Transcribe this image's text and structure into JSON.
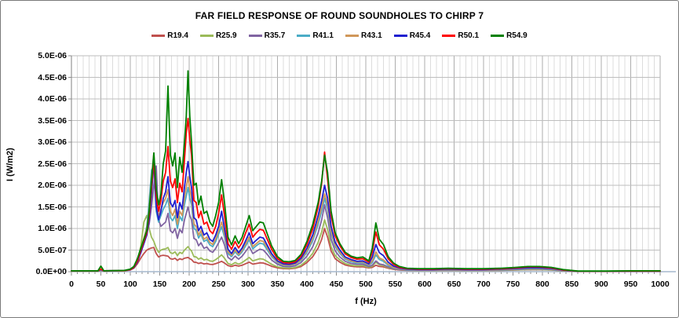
{
  "figure": {
    "title": "FAR FIELD RESPONSE OF ROUND SOUNDHOLES TO CHIRP 7"
  },
  "axes": {
    "x": {
      "label": "f (Hz)",
      "min": 0,
      "max": 1000,
      "major_step": 50,
      "minor_step": 10,
      "ticks": [
        "0",
        "50",
        "100",
        "150",
        "200",
        "250",
        "300",
        "350",
        "400",
        "450",
        "500",
        "550",
        "600",
        "650",
        "700",
        "750",
        "800",
        "850",
        "900",
        "950",
        "1000"
      ]
    },
    "y": {
      "label": "I (W/m2)",
      "min": "0.0E+00",
      "max": "5.0E-06",
      "ticks": [
        "5.0E-06",
        "4.5E-06",
        "4.0E-06",
        "3.5E-06",
        "3.0E-06",
        "2.5E-06",
        "2.0E-06",
        "1.5E-06",
        "1.0E-06",
        "5.0E-07",
        "0.0E+00"
      ]
    }
  },
  "chart_data": {
    "type": "line",
    "title": "FAR FIELD RESPONSE OF ROUND SOUNDHOLES TO CHIRP 7",
    "xlabel": "f (Hz)",
    "ylabel": "I (W/m2)",
    "xlim": [
      0,
      1000
    ],
    "ylim": [
      0,
      5e-06
    ],
    "legend_position": "top",
    "grid": {
      "x_minor_hz": 10,
      "x_major_hz": 50,
      "y_step": 5e-07
    },
    "value_unit": 1e-07,
    "x": [
      0,
      45,
      50,
      55,
      90,
      100,
      106,
      112,
      118,
      123,
      128,
      132,
      136,
      140,
      144,
      148,
      152,
      156,
      160,
      164,
      168,
      172,
      176,
      180,
      184,
      188,
      192,
      195,
      198,
      201,
      204,
      208,
      212,
      216,
      220,
      225,
      230,
      235,
      240,
      245,
      250,
      255,
      260,
      266,
      272,
      278,
      284,
      290,
      296,
      302,
      308,
      314,
      320,
      326,
      332,
      340,
      350,
      360,
      370,
      380,
      390,
      400,
      410,
      419,
      425,
      430,
      435,
      441,
      448,
      456,
      465,
      475,
      485,
      495,
      505,
      511,
      517,
      523,
      530,
      538,
      547,
      557,
      570,
      590,
      615,
      640,
      670,
      700,
      730,
      755,
      775,
      795,
      815,
      835,
      850,
      860,
      880,
      910,
      950,
      1000
    ],
    "series": [
      {
        "name": "R19.4",
        "color": "#C0504D",
        "values": [
          0.15,
          0.15,
          0.25,
          0.15,
          0.2,
          0.4,
          0.8,
          1.8,
          3.2,
          4.2,
          5.0,
          5.3,
          5.5,
          5.6,
          4.2,
          3.4,
          3.7,
          3.8,
          3.7,
          3.6,
          3.0,
          2.9,
          3.1,
          2.6,
          3.0,
          2.8,
          3.1,
          3.2,
          3.3,
          3.0,
          2.8,
          2.2,
          2.15,
          1.9,
          2.05,
          1.8,
          1.9,
          1.7,
          1.65,
          1.85,
          2.1,
          2.4,
          2.0,
          1.4,
          1.2,
          1.5,
          1.3,
          1.5,
          1.85,
          2.2,
          1.75,
          1.9,
          2.05,
          2.0,
          1.7,
          1.25,
          0.9,
          0.7,
          0.68,
          0.8,
          1.2,
          2.1,
          3.5,
          5.5,
          7.5,
          10.0,
          8.0,
          4.8,
          3.0,
          2.2,
          1.55,
          1.25,
          1.1,
          1.15,
          0.85,
          1.0,
          1.5,
          1.2,
          1.1,
          0.8,
          0.55,
          0.4,
          0.3,
          0.28,
          0.28,
          0.3,
          0.28,
          0.28,
          0.3,
          0.38,
          0.45,
          0.45,
          0.38,
          0.18,
          0.12,
          0.06,
          0.06,
          0.06,
          0.06,
          0.06
        ]
      },
      {
        "name": "R25.9",
        "color": "#9BBB59",
        "values": [
          0.15,
          0.15,
          0.3,
          0.15,
          0.2,
          0.45,
          0.9,
          2.2,
          6.0,
          11.5,
          13.0,
          10.0,
          8.0,
          7.0,
          5.5,
          4.5,
          5.0,
          5.2,
          5.3,
          5.6,
          4.4,
          4.2,
          4.6,
          3.7,
          4.5,
          4.2,
          5.0,
          5.4,
          5.8,
          5.2,
          4.8,
          3.5,
          3.4,
          2.9,
          3.2,
          2.7,
          2.85,
          2.5,
          2.4,
          2.8,
          3.3,
          3.9,
          3.1,
          1.9,
          1.6,
          2.1,
          1.75,
          2.1,
          2.7,
          3.3,
          2.5,
          2.75,
          3.0,
          2.9,
          2.4,
          1.7,
          1.1,
          0.85,
          0.8,
          0.95,
          1.5,
          2.6,
          4.3,
          6.8,
          9.2,
          12.0,
          9.8,
          5.8,
          3.7,
          2.7,
          1.9,
          1.5,
          1.35,
          1.4,
          1.0,
          1.3,
          2.2,
          1.6,
          1.4,
          0.95,
          0.65,
          0.45,
          0.35,
          0.3,
          0.3,
          0.33,
          0.3,
          0.3,
          0.33,
          0.42,
          0.5,
          0.5,
          0.42,
          0.2,
          0.13,
          0.07,
          0.07,
          0.07,
          0.07,
          0.07
        ]
      },
      {
        "name": "R35.7",
        "color": "#8064A2",
        "values": [
          0.2,
          0.2,
          0.35,
          0.2,
          0.25,
          0.55,
          1.1,
          2.6,
          5.0,
          7.0,
          9.0,
          11.0,
          15.0,
          20.0,
          24.5,
          12.0,
          10.5,
          11.0,
          11.5,
          13.5,
          9.5,
          9.0,
          10.0,
          7.7,
          9.8,
          9.0,
          12.0,
          13.5,
          15.0,
          13.0,
          12.0,
          7.7,
          7.4,
          6.0,
          6.7,
          5.4,
          5.7,
          4.8,
          4.5,
          5.4,
          6.7,
          8.0,
          6.2,
          3.3,
          2.7,
          3.6,
          2.9,
          3.6,
          4.7,
          5.8,
          4.2,
          4.7,
          5.2,
          5.0,
          4.1,
          2.7,
          1.7,
          1.2,
          1.15,
          1.35,
          2.1,
          3.6,
          5.8,
          9.0,
          12.0,
          15.5,
          12.5,
          7.5,
          4.8,
          3.4,
          2.4,
          1.9,
          1.7,
          1.75,
          1.2,
          1.5,
          2.5,
          1.8,
          1.6,
          1.1,
          0.7,
          0.5,
          0.4,
          0.35,
          0.35,
          0.4,
          0.35,
          0.35,
          0.4,
          0.5,
          0.6,
          0.6,
          0.5,
          0.25,
          0.15,
          0.08,
          0.08,
          0.08,
          0.08,
          0.08
        ]
      },
      {
        "name": "R41.1",
        "color": "#4BACC6",
        "values": [
          0.2,
          0.2,
          0.4,
          0.2,
          0.25,
          0.5,
          1.0,
          2.4,
          5.0,
          7.5,
          10.5,
          16.0,
          23.5,
          24.5,
          14.0,
          11.5,
          13.0,
          14.5,
          15.5,
          17.0,
          12.5,
          11.8,
          13.0,
          10.0,
          12.8,
          11.8,
          15.5,
          17.5,
          19.5,
          17.0,
          15.5,
          10.0,
          9.6,
          7.8,
          8.7,
          7.0,
          7.4,
          6.2,
          5.8,
          7.0,
          8.7,
          10.4,
          8.0,
          4.2,
          3.5,
          4.6,
          3.7,
          4.6,
          6.0,
          7.4,
          5.3,
          6.0,
          6.6,
          6.4,
          5.2,
          3.5,
          2.1,
          1.5,
          1.45,
          1.7,
          2.6,
          4.5,
          7.2,
          11.0,
          14.0,
          17.0,
          14.5,
          9.0,
          5.8,
          4.2,
          2.9,
          2.3,
          2.0,
          2.1,
          1.5,
          2.1,
          3.9,
          2.8,
          2.4,
          1.5,
          0.9,
          0.65,
          0.5,
          0.4,
          0.4,
          0.45,
          0.4,
          0.4,
          0.45,
          0.6,
          0.7,
          0.7,
          0.6,
          0.28,
          0.18,
          0.1,
          0.1,
          0.1,
          0.1,
          0.1
        ]
      },
      {
        "name": "R43.1",
        "color": "#D0975A",
        "values": [
          0.2,
          0.2,
          0.45,
          0.2,
          0.25,
          0.5,
          1.0,
          2.5,
          5.2,
          7.8,
          10.0,
          14.5,
          21.5,
          27.5,
          16.0,
          12.5,
          14.5,
          16.0,
          17.0,
          19.0,
          14.0,
          13.0,
          14.5,
          11.0,
          14.0,
          13.0,
          17.0,
          19.5,
          22.0,
          19.0,
          17.0,
          11.0,
          10.5,
          8.5,
          9.5,
          7.5,
          8.0,
          6.8,
          6.3,
          7.6,
          9.5,
          11.5,
          8.8,
          4.6,
          3.8,
          5.0,
          4.0,
          5.0,
          6.5,
          8.0,
          5.8,
          6.5,
          7.2,
          7.0,
          5.7,
          3.8,
          2.3,
          1.6,
          1.55,
          1.8,
          2.8,
          4.9,
          7.8,
          11.8,
          15.0,
          18.0,
          15.5,
          9.5,
          6.2,
          4.5,
          3.1,
          2.5,
          2.2,
          2.3,
          1.6,
          2.5,
          4.6,
          3.2,
          2.7,
          1.7,
          1.0,
          0.7,
          0.55,
          0.45,
          0.45,
          0.5,
          0.45,
          0.45,
          0.5,
          0.65,
          0.8,
          0.8,
          0.65,
          0.3,
          0.2,
          0.1,
          0.1,
          0.1,
          0.1,
          0.1
        ]
      },
      {
        "name": "R45.4",
        "color": "#1F1FD0",
        "values": [
          0.2,
          0.2,
          0.5,
          0.2,
          0.25,
          0.45,
          0.9,
          2.2,
          4.5,
          6.5,
          8.5,
          12.0,
          18.0,
          25.5,
          15.0,
          12.0,
          14.0,
          17.0,
          18.5,
          22.0,
          16.0,
          15.0,
          16.5,
          12.5,
          16.0,
          14.5,
          19.5,
          23.0,
          25.5,
          22.0,
          19.5,
          12.5,
          12.0,
          9.5,
          10.5,
          8.5,
          9.0,
          7.5,
          7.0,
          8.5,
          10.5,
          14.0,
          10.0,
          5.2,
          4.2,
          5.6,
          4.4,
          5.5,
          7.2,
          9.0,
          6.5,
          7.3,
          8.0,
          7.8,
          6.3,
          4.2,
          2.5,
          1.8,
          1.7,
          2.0,
          3.1,
          5.4,
          8.6,
          13.0,
          16.5,
          20.0,
          17.0,
          10.5,
          6.8,
          5.0,
          3.4,
          2.8,
          2.4,
          2.5,
          1.8,
          3.4,
          6.3,
          4.4,
          3.7,
          2.2,
          1.3,
          0.85,
          0.6,
          0.5,
          0.5,
          0.6,
          0.5,
          0.5,
          0.6,
          0.75,
          0.9,
          0.9,
          0.75,
          0.35,
          0.2,
          0.1,
          0.1,
          0.1,
          0.12,
          0.12
        ]
      },
      {
        "name": "R50.1",
        "color": "#FF0000",
        "values": [
          0.2,
          0.2,
          0.6,
          0.2,
          0.25,
          0.5,
          1.0,
          2.5,
          5.0,
          7.0,
          9.0,
          13.0,
          19.5,
          26.0,
          17.5,
          14.0,
          16.5,
          21.0,
          23.0,
          29.0,
          21.0,
          19.5,
          21.5,
          16.0,
          20.5,
          18.5,
          26.0,
          32.0,
          35.5,
          30.5,
          27.0,
          16.5,
          16.0,
          12.5,
          14.0,
          11.0,
          11.5,
          9.5,
          8.8,
          10.5,
          13.5,
          17.8,
          13.0,
          6.5,
          5.2,
          7.0,
          5.5,
          6.8,
          9.0,
          11.0,
          8.0,
          9.0,
          9.8,
          9.6,
          7.7,
          5.2,
          3.0,
          2.1,
          2.0,
          2.3,
          3.6,
          6.3,
          10.0,
          15.0,
          20.5,
          27.7,
          21.5,
          13.0,
          8.3,
          6.0,
          4.1,
          3.3,
          2.9,
          3.0,
          2.2,
          4.6,
          9.2,
          6.2,
          5.2,
          3.0,
          1.7,
          1.0,
          0.7,
          0.6,
          0.6,
          0.7,
          0.6,
          0.6,
          0.7,
          0.9,
          1.1,
          1.1,
          0.9,
          0.4,
          0.25,
          0.1,
          0.1,
          0.1,
          0.15,
          0.15
        ]
      },
      {
        "name": "R54.9",
        "color": "#008000",
        "values": [
          0.2,
          0.2,
          1.3,
          0.2,
          0.3,
          0.6,
          1.2,
          3.0,
          5.5,
          7.5,
          9.5,
          14.0,
          21.0,
          27.5,
          19.0,
          15.5,
          18.0,
          25.0,
          28.0,
          43.0,
          27.0,
          24.5,
          27.5,
          19.5,
          26.5,
          23.0,
          30.0,
          36.0,
          46.5,
          36.0,
          30.0,
          20.0,
          20.5,
          15.5,
          17.5,
          13.5,
          14.0,
          11.5,
          10.5,
          13.0,
          16.0,
          21.3,
          16.0,
          8.0,
          6.2,
          8.3,
          6.5,
          8.0,
          10.5,
          13.0,
          9.5,
          10.5,
          11.5,
          11.3,
          9.0,
          6.0,
          3.5,
          2.4,
          2.3,
          2.6,
          4.0,
          7.0,
          11.0,
          16.0,
          21.0,
          27.0,
          23.0,
          14.0,
          9.0,
          6.5,
          4.5,
          3.6,
          3.2,
          3.4,
          2.5,
          5.5,
          11.3,
          7.5,
          6.3,
          3.5,
          2.0,
          1.2,
          0.8,
          0.7,
          0.7,
          0.8,
          0.7,
          0.7,
          0.8,
          1.0,
          1.2,
          1.2,
          1.0,
          0.5,
          0.3,
          0.15,
          0.15,
          0.15,
          0.2,
          0.2
        ]
      }
    ]
  }
}
